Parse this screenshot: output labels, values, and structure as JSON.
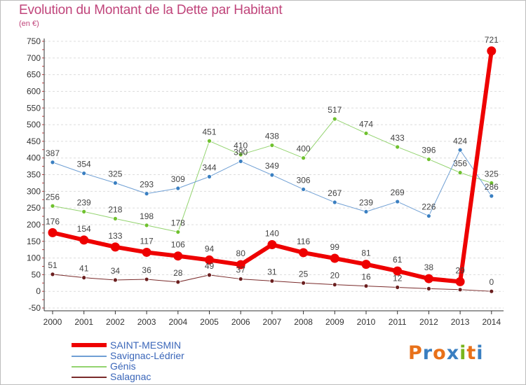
{
  "header": {
    "title": "Evolution du Montant de la Dette par Habitant",
    "subtitle": "(en €)"
  },
  "logo": {
    "text": "Proxiti",
    "colors": [
      "#e8711a",
      "#3a7fc1",
      "#e8711a",
      "#3a7fc1",
      "#7ab51d",
      "#e8711a",
      "#3a7fc1"
    ]
  },
  "chart_data": {
    "type": "line",
    "title": "Evolution du Montant de la Dette par Habitant",
    "subtitle": "(en €)",
    "xlabel": "",
    "ylabel": "",
    "ylim": [
      -50,
      750
    ],
    "yticks": [
      -50,
      0,
      50,
      100,
      150,
      200,
      250,
      300,
      350,
      400,
      450,
      500,
      550,
      600,
      650,
      700,
      750
    ],
    "grid": "horizontal dashed",
    "legend_position": "bottom-left",
    "x": [
      "2000",
      "2001",
      "2002",
      "2003",
      "2004",
      "2005",
      "2006",
      "2007",
      "2008",
      "2009",
      "2010",
      "2011",
      "2012",
      "2013",
      "2014"
    ],
    "series": [
      {
        "name": "SAINT-MESMIN",
        "color": "#ee0000",
        "line_color": "#ee0000",
        "marker_color": "#ee0000",
        "width": 6,
        "values": [
          176,
          154,
          133,
          117,
          106,
          94,
          80,
          140,
          116,
          99,
          81,
          61,
          38,
          29,
          721
        ],
        "labels": [
          "176",
          "154",
          "133",
          "117",
          "106",
          "94",
          "80",
          "140",
          "116",
          "99",
          "81",
          "61",
          "38",
          "29",
          "721"
        ]
      },
      {
        "name": "Savignac-Lédrier",
        "color": "#6f9fd4",
        "line_color": "#6f9fd4",
        "marker_color": "#3a7fc1",
        "width": 1,
        "values": [
          387,
          354,
          325,
          293,
          309,
          344,
          390,
          349,
          306,
          267,
          239,
          269,
          226,
          424,
          286
        ],
        "labels": [
          "387",
          "354",
          "325",
          "293",
          "309",
          "344",
          "390",
          "349",
          "306",
          "267",
          "239",
          "269",
          "226",
          "424",
          "286"
        ]
      },
      {
        "name": "Génis",
        "color": "#93d36f",
        "line_color": "#93d36f",
        "marker_color": "#6fc12e",
        "width": 1,
        "values": [
          256,
          239,
          218,
          198,
          178,
          451,
          410,
          438,
          400,
          517,
          474,
          433,
          396,
          356,
          325
        ],
        "labels": [
          "256",
          "239",
          "218",
          "198",
          "178",
          "451",
          "410",
          "438",
          "400",
          "517",
          "474",
          "433",
          "396",
          "356",
          "325"
        ]
      },
      {
        "name": "Salagnac",
        "color": "#7a2b2b",
        "line_color": "#7a2b2b",
        "marker_color": "#6b1f1f",
        "width": 1,
        "values": [
          51,
          41,
          34,
          36,
          28,
          49,
          37,
          31,
          25,
          20,
          16,
          12,
          8,
          5,
          0
        ],
        "labels": [
          "51",
          "41",
          "34",
          "36",
          "28",
          "49",
          "37",
          "31",
          "25",
          "20",
          "16",
          "12",
          "",
          "",
          "0"
        ]
      }
    ]
  }
}
